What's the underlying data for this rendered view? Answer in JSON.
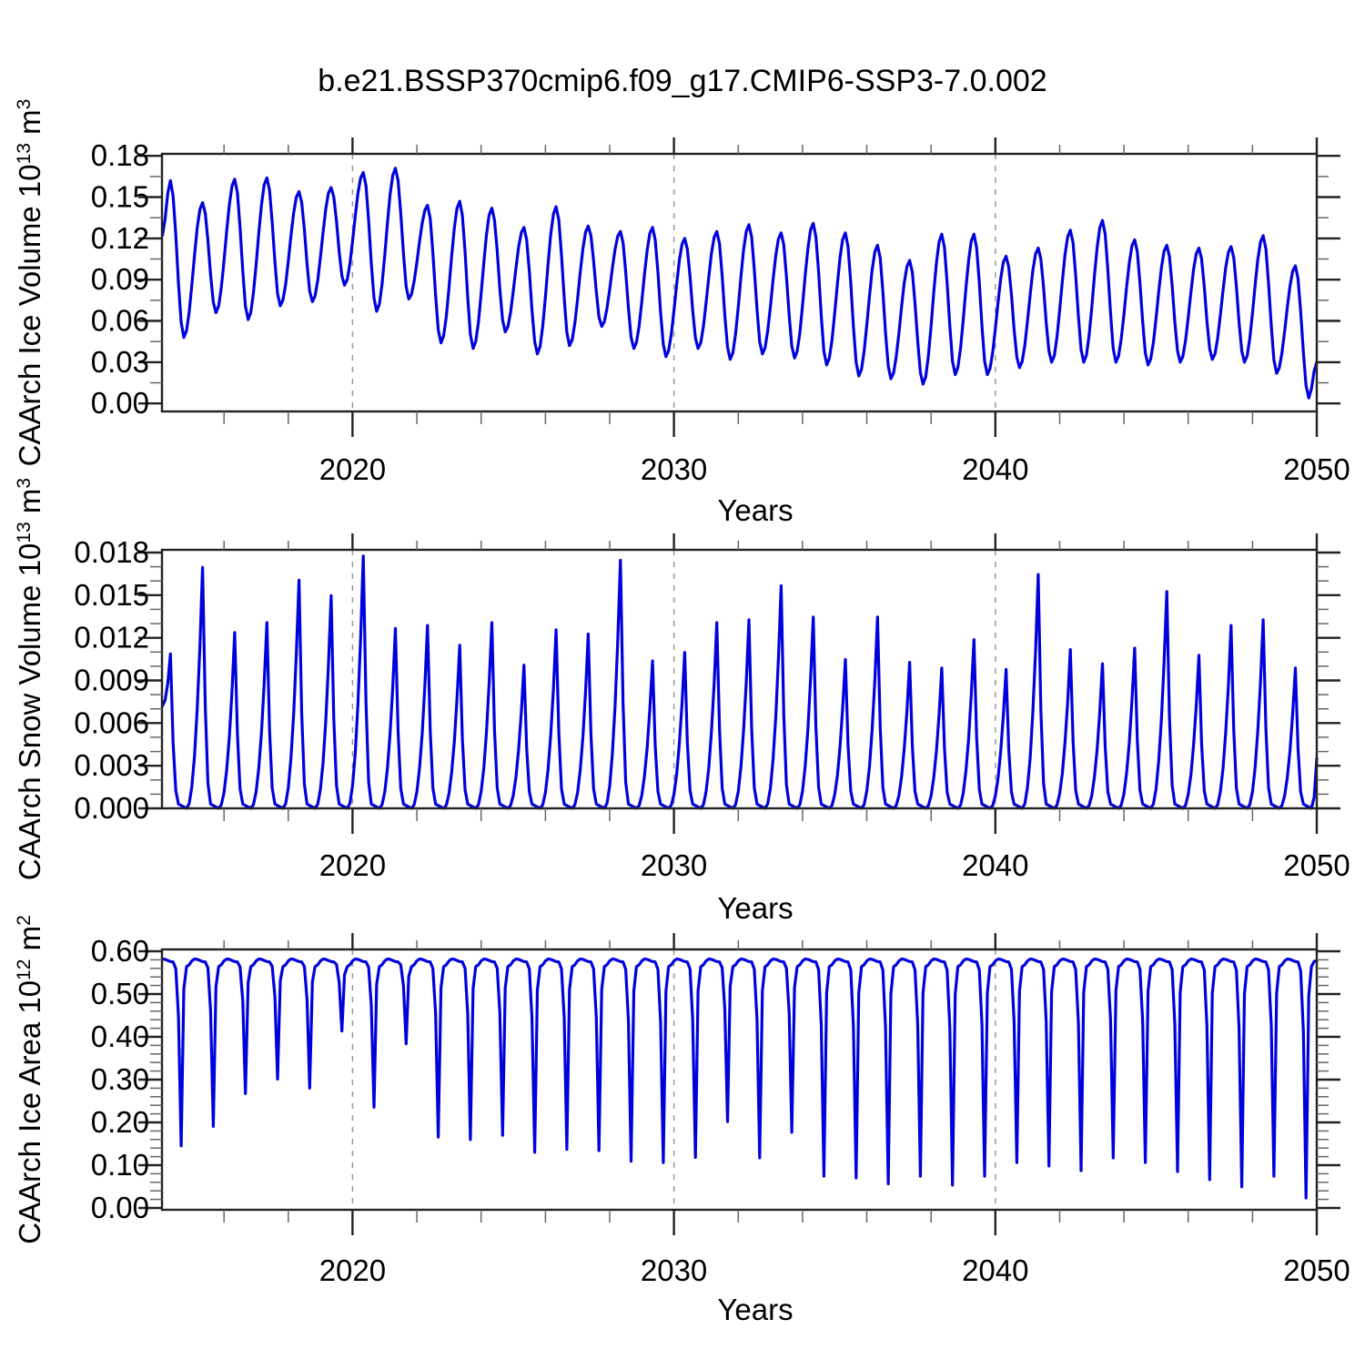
{
  "title": "b.e21.BSSP370cmip6.f09_g17.CMIP6-SSP3-7.0.002",
  "colors": {
    "line": "#0000dd",
    "frame": "#222222",
    "minor_tick": "#666666",
    "grid": "#999999",
    "text": "#000000",
    "background": "#ffffff"
  },
  "chart_data": [
    {
      "type": "line",
      "panel": "caarch-ice-volume",
      "ylabel_parts": [
        {
          "t": "CAArch Ice Volume 10"
        },
        {
          "t": "13",
          "sup": true
        },
        {
          "t": " m"
        },
        {
          "t": "3",
          "sup": true
        }
      ],
      "xlabel": "Years",
      "ylim": [
        0,
        0.18
      ],
      "y_major": [
        0,
        0.03,
        0.06,
        0.09,
        0.12,
        0.15,
        0.18
      ],
      "y_major_labels": [
        "0.00",
        "0.03",
        "0.06",
        "0.09",
        "0.12",
        "0.15",
        "0.18"
      ],
      "y_minor": [
        0.015,
        0.045,
        0.075,
        0.105,
        0.135,
        0.165
      ],
      "x_range": [
        2014.07,
        2050.0
      ],
      "x_major": [
        2020,
        2030,
        2040,
        2050
      ],
      "x_major_labels": [
        "2020",
        "2030",
        "2040",
        "2050"
      ],
      "x_minor": [
        2016,
        2018,
        2022,
        2024,
        2026,
        2028,
        2032,
        2034,
        2036,
        2038,
        2042,
        2044,
        2046,
        2048
      ],
      "grid_x": [
        2020,
        2030,
        2040
      ],
      "sampling": "monthly seasonal cycle, 2014.08 - 2050.0",
      "shape": "smooth",
      "years": [
        2014,
        2015,
        2016,
        2017,
        2018,
        2019,
        2020,
        2021,
        2022,
        2023,
        2024,
        2025,
        2026,
        2027,
        2028,
        2029,
        2030,
        2031,
        2032,
        2033,
        2034,
        2035,
        2036,
        2037,
        2038,
        2039,
        2040,
        2041,
        2042,
        2043,
        2044,
        2045,
        2046,
        2047,
        2048,
        2049
      ],
      "spring_max": [
        0.162,
        0.146,
        0.163,
        0.164,
        0.154,
        0.157,
        0.168,
        0.171,
        0.144,
        0.147,
        0.142,
        0.128,
        0.143,
        0.129,
        0.125,
        0.128,
        0.12,
        0.125,
        0.13,
        0.124,
        0.131,
        0.124,
        0.115,
        0.104,
        0.123,
        0.123,
        0.107,
        0.113,
        0.126,
        0.133,
        0.119,
        0.115,
        0.113,
        0.114,
        0.122,
        0.1
      ],
      "autumn_min": [
        0.048,
        0.066,
        0.061,
        0.071,
        0.074,
        0.086,
        0.067,
        0.076,
        0.044,
        0.04,
        0.052,
        0.036,
        0.042,
        0.056,
        0.04,
        0.034,
        0.04,
        0.032,
        0.036,
        0.033,
        0.028,
        0.02,
        0.018,
        0.014,
        0.021,
        0.021,
        0.026,
        0.03,
        0.03,
        0.03,
        0.028,
        0.03,
        0.032,
        0.03,
        0.022,
        0.004
      ],
      "start_value": 0.122,
      "end_value": 0.03
    },
    {
      "type": "line",
      "panel": "caarch-snow-volume",
      "ylabel_parts": [
        {
          "t": "CAArch Snow Volume 10"
        },
        {
          "t": "13",
          "sup": true
        },
        {
          "t": " m"
        },
        {
          "t": "3",
          "sup": true
        }
      ],
      "xlabel": "Years",
      "ylim": [
        0,
        0.018
      ],
      "y_major": [
        0,
        0.003,
        0.006,
        0.009,
        0.012,
        0.015,
        0.018
      ],
      "y_major_labels": [
        "0.000",
        "0.003",
        "0.006",
        "0.009",
        "0.012",
        "0.015",
        "0.018"
      ],
      "y_minor": [
        0.001,
        0.002,
        0.004,
        0.005,
        0.007,
        0.008,
        0.01,
        0.011,
        0.013,
        0.014,
        0.016,
        0.017
      ],
      "x_range": [
        2014.07,
        2050.0
      ],
      "x_major": [
        2020,
        2030,
        2040,
        2050
      ],
      "x_major_labels": [
        "2020",
        "2030",
        "2040",
        "2050"
      ],
      "x_minor": [
        2016,
        2018,
        2022,
        2024,
        2026,
        2028,
        2032,
        2034,
        2036,
        2038,
        2042,
        2044,
        2046,
        2048
      ],
      "grid_x": [
        2020,
        2030,
        2040
      ],
      "sampling": "monthly seasonal cycle, 2014.08 - 2050.0",
      "shape": "sawtooth_zero_summer",
      "years": [
        2014,
        2015,
        2016,
        2017,
        2018,
        2019,
        2020,
        2021,
        2022,
        2023,
        2024,
        2025,
        2026,
        2027,
        2028,
        2029,
        2030,
        2031,
        2032,
        2033,
        2034,
        2035,
        2036,
        2037,
        2038,
        2039,
        2040,
        2041,
        2042,
        2043,
        2044,
        2045,
        2046,
        2047,
        2048,
        2049
      ],
      "spring_max": [
        0.0109,
        0.017,
        0.0124,
        0.0131,
        0.0161,
        0.015,
        0.0178,
        0.0127,
        0.0129,
        0.0115,
        0.0131,
        0.0101,
        0.0126,
        0.0123,
        0.0175,
        0.0104,
        0.011,
        0.0131,
        0.0133,
        0.0157,
        0.0135,
        0.0105,
        0.0135,
        0.0103,
        0.0099,
        0.0119,
        0.0098,
        0.0165,
        0.0112,
        0.0102,
        0.0113,
        0.0153,
        0.0108,
        0.0129,
        0.0133,
        0.0099
      ],
      "summer_min": 0.0,
      "start_value": 0.0072,
      "end_value": 0.0035
    },
    {
      "type": "line",
      "panel": "caarch-ice-area",
      "ylabel_parts": [
        {
          "t": "CAArch Ice Area 10"
        },
        {
          "t": "12",
          "sup": true
        },
        {
          "t": " m"
        },
        {
          "t": "2",
          "sup": true
        }
      ],
      "xlabel": "Years",
      "ylim": [
        0,
        0.6
      ],
      "y_major": [
        0,
        0.1,
        0.2,
        0.3,
        0.4,
        0.5,
        0.6
      ],
      "y_major_labels": [
        "0.00",
        "0.10",
        "0.20",
        "0.30",
        "0.40",
        "0.50",
        "0.60"
      ],
      "y_minor": [
        0.02,
        0.04,
        0.06,
        0.08,
        0.12,
        0.14,
        0.16,
        0.18,
        0.22,
        0.24,
        0.26,
        0.28,
        0.32,
        0.34,
        0.36,
        0.38,
        0.42,
        0.44,
        0.46,
        0.48,
        0.52,
        0.54,
        0.56,
        0.58
      ],
      "x_range": [
        2014.07,
        2050.0
      ],
      "x_major": [
        2020,
        2030,
        2040,
        2050
      ],
      "x_major_labels": [
        "2020",
        "2030",
        "2040",
        "2050"
      ],
      "x_minor": [
        2016,
        2018,
        2022,
        2024,
        2026,
        2028,
        2032,
        2034,
        2036,
        2038,
        2042,
        2044,
        2046,
        2048
      ],
      "grid_x": [
        2020,
        2030,
        2040
      ],
      "sampling": "monthly seasonal cycle, 2014.08 - 2050.0",
      "shape": "plateau_with_dips",
      "winter_plateau": 0.582,
      "years": [
        2014,
        2015,
        2016,
        2017,
        2018,
        2019,
        2020,
        2021,
        2022,
        2023,
        2024,
        2025,
        2026,
        2027,
        2028,
        2029,
        2030,
        2031,
        2032,
        2033,
        2034,
        2035,
        2036,
        2037,
        2038,
        2039,
        2040,
        2041,
        2042,
        2043,
        2044,
        2045,
        2046,
        2047,
        2048,
        2049
      ],
      "september_min": [
        0.143,
        0.189,
        0.266,
        0.3,
        0.279,
        0.413,
        0.234,
        0.383,
        0.164,
        0.158,
        0.168,
        0.128,
        0.135,
        0.132,
        0.107,
        0.104,
        0.116,
        0.2,
        0.115,
        0.175,
        0.072,
        0.068,
        0.054,
        0.072,
        0.051,
        0.072,
        0.104,
        0.096,
        0.085,
        0.115,
        0.104,
        0.083,
        0.064,
        0.047,
        0.072,
        0.021
      ],
      "start_value": 0.582,
      "end_value": 0.578
    }
  ]
}
